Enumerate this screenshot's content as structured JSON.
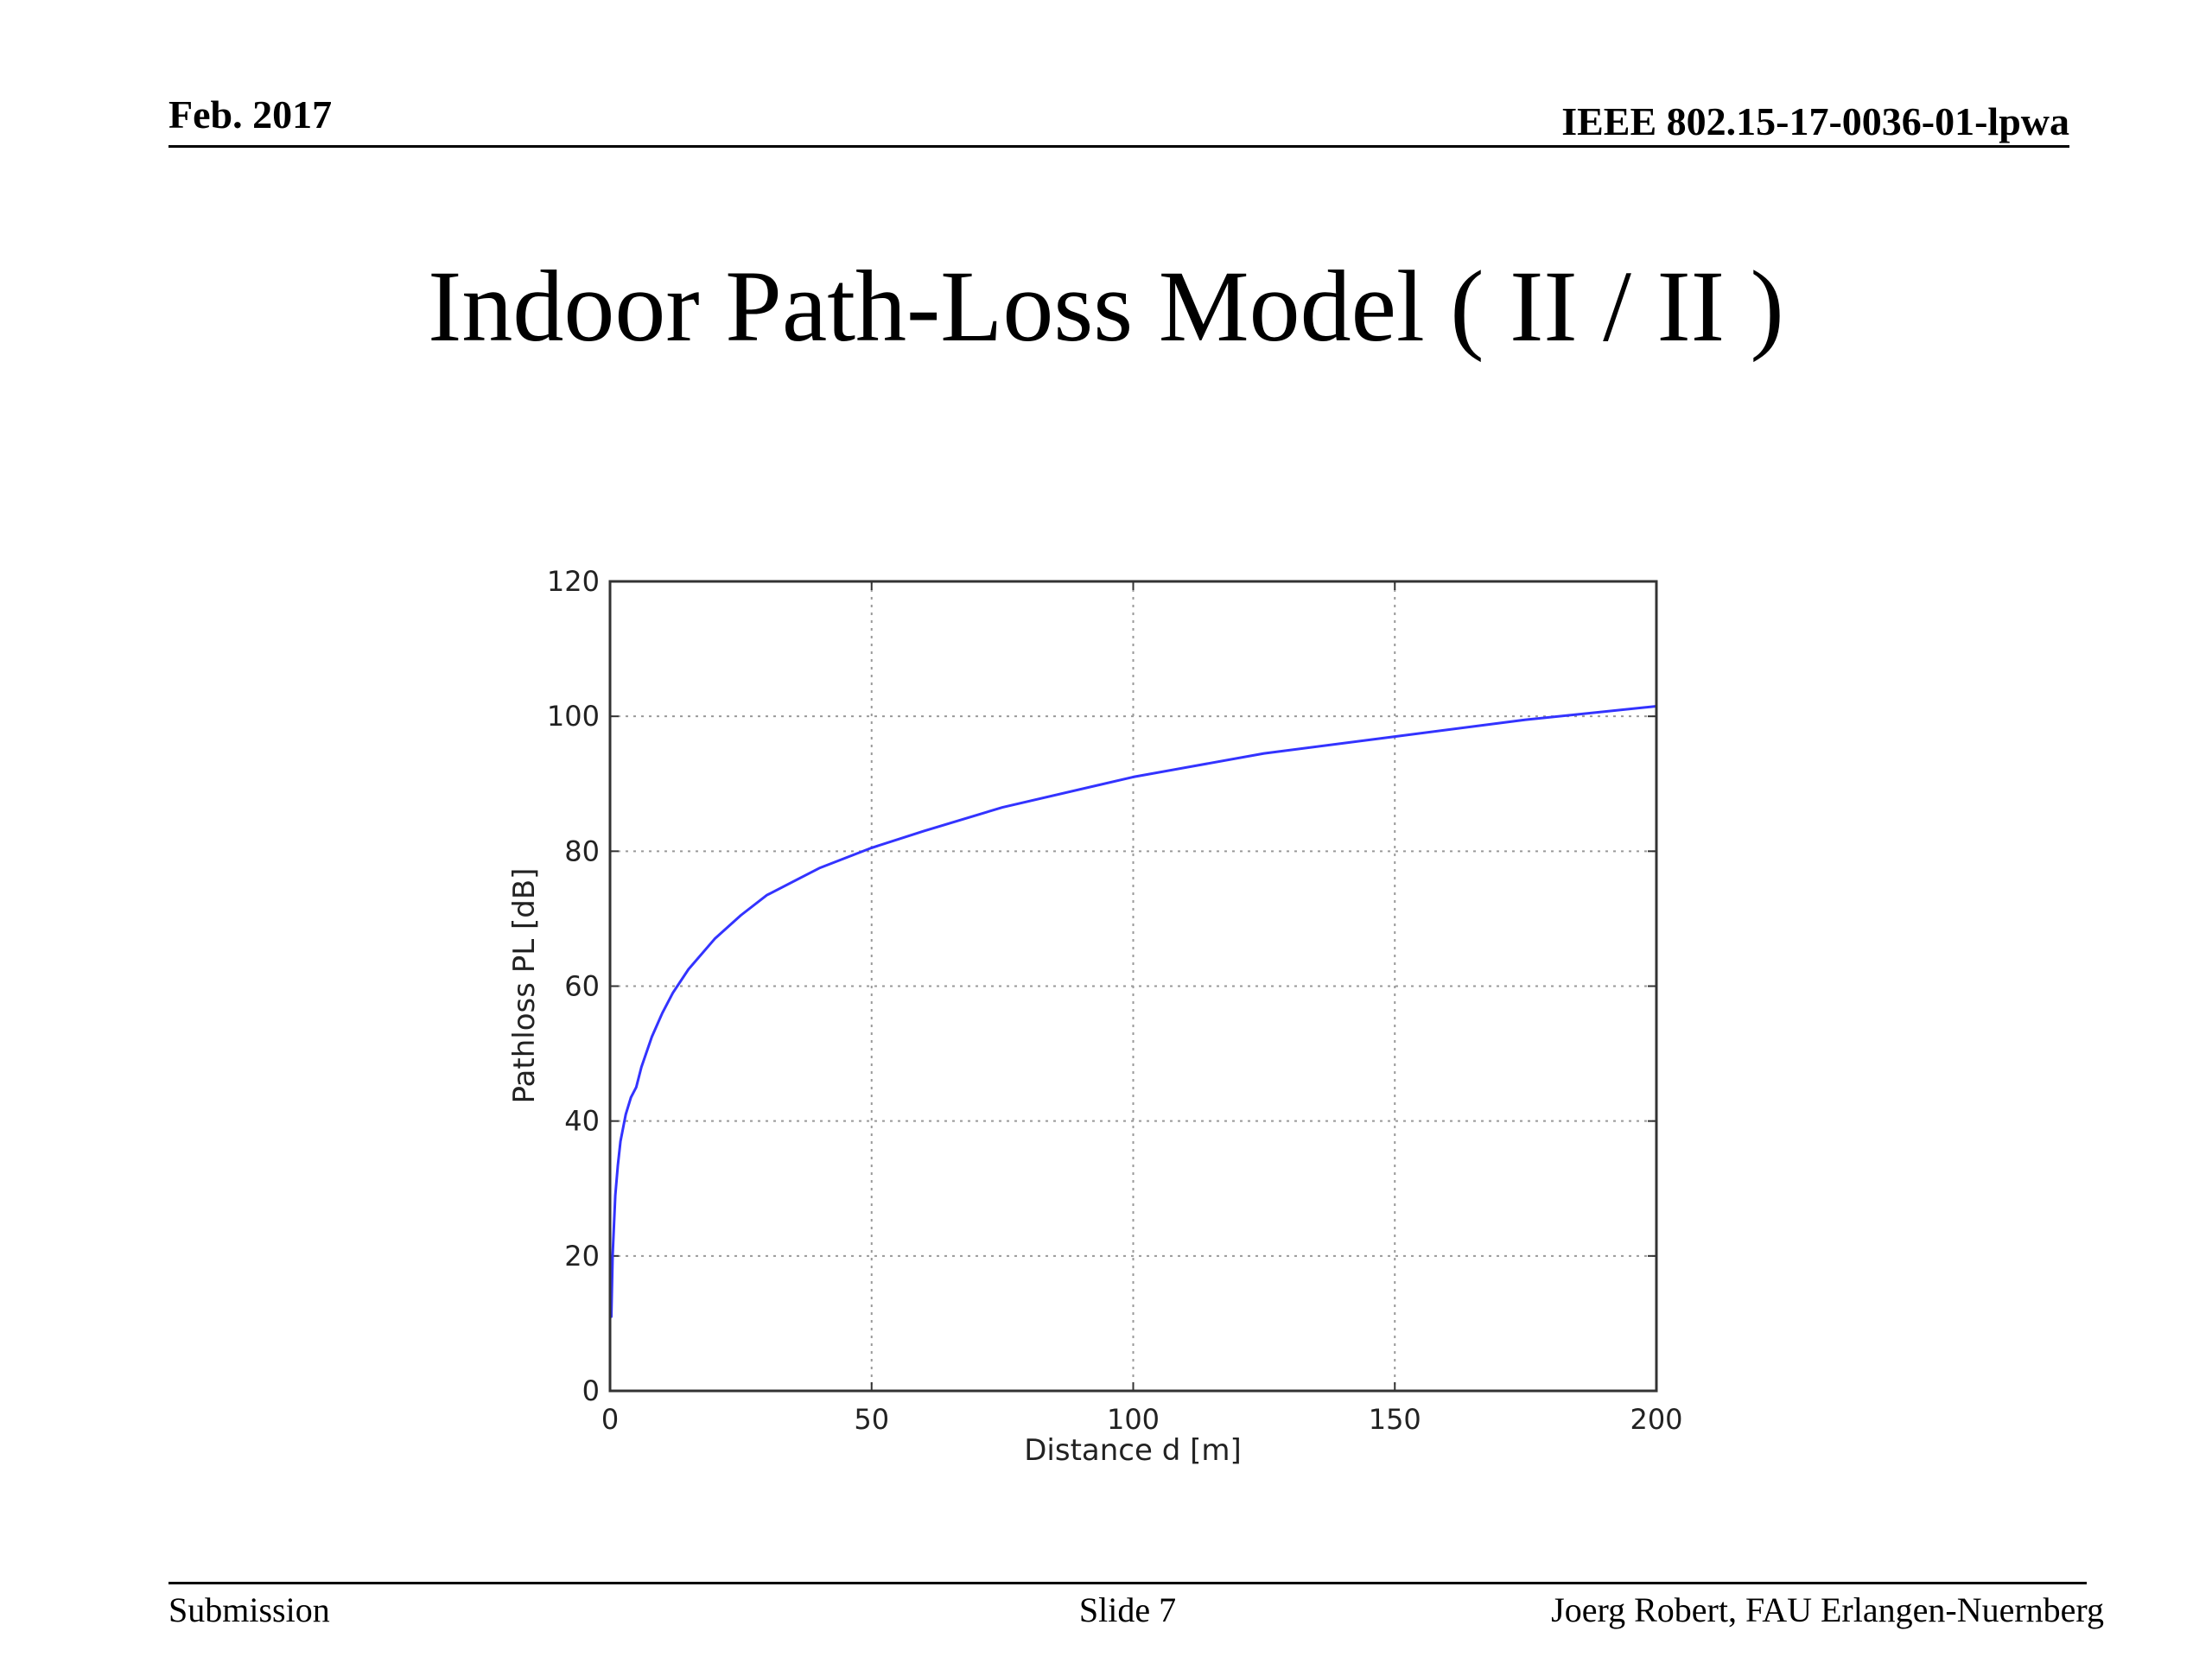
{
  "header": {
    "date": "Feb. 2017",
    "doc_id": "IEEE 802.15-17-0036-01-lpwa"
  },
  "slide": {
    "title": "Indoor Path-Loss Model ( II / II )"
  },
  "footer": {
    "left": "Submission",
    "center": "Slide 7",
    "right": "Joerg Robert, FAU Erlangen-Nuernberg"
  },
  "chart_data": {
    "type": "line",
    "title": "",
    "xlabel": "Distance d [m]",
    "ylabel": "Pathloss PL [dB]",
    "xlim": [
      0,
      200
    ],
    "ylim": [
      0,
      120
    ],
    "xticks": [
      0,
      50,
      100,
      150,
      200
    ],
    "yticks": [
      0,
      20,
      40,
      60,
      80,
      100,
      120
    ],
    "grid": true,
    "colors": {
      "line": "#3333ff",
      "grid": "#999999",
      "axes": "#333333"
    },
    "series": [
      {
        "x": [
          0.25,
          0.5,
          1,
          1.5,
          2,
          3,
          4,
          5,
          6,
          8,
          10,
          12,
          15,
          20,
          25,
          30,
          40,
          50,
          60,
          75,
          100,
          125,
          150,
          175,
          200
        ],
        "values": [
          11,
          20,
          29,
          33.5,
          37,
          41,
          43.5,
          45,
          48,
          52.5,
          56,
          59,
          62.5,
          67,
          70.5,
          73.5,
          77.5,
          80.5,
          83,
          86.5,
          91,
          94.5,
          97,
          99.5,
          101.5
        ]
      }
    ]
  }
}
